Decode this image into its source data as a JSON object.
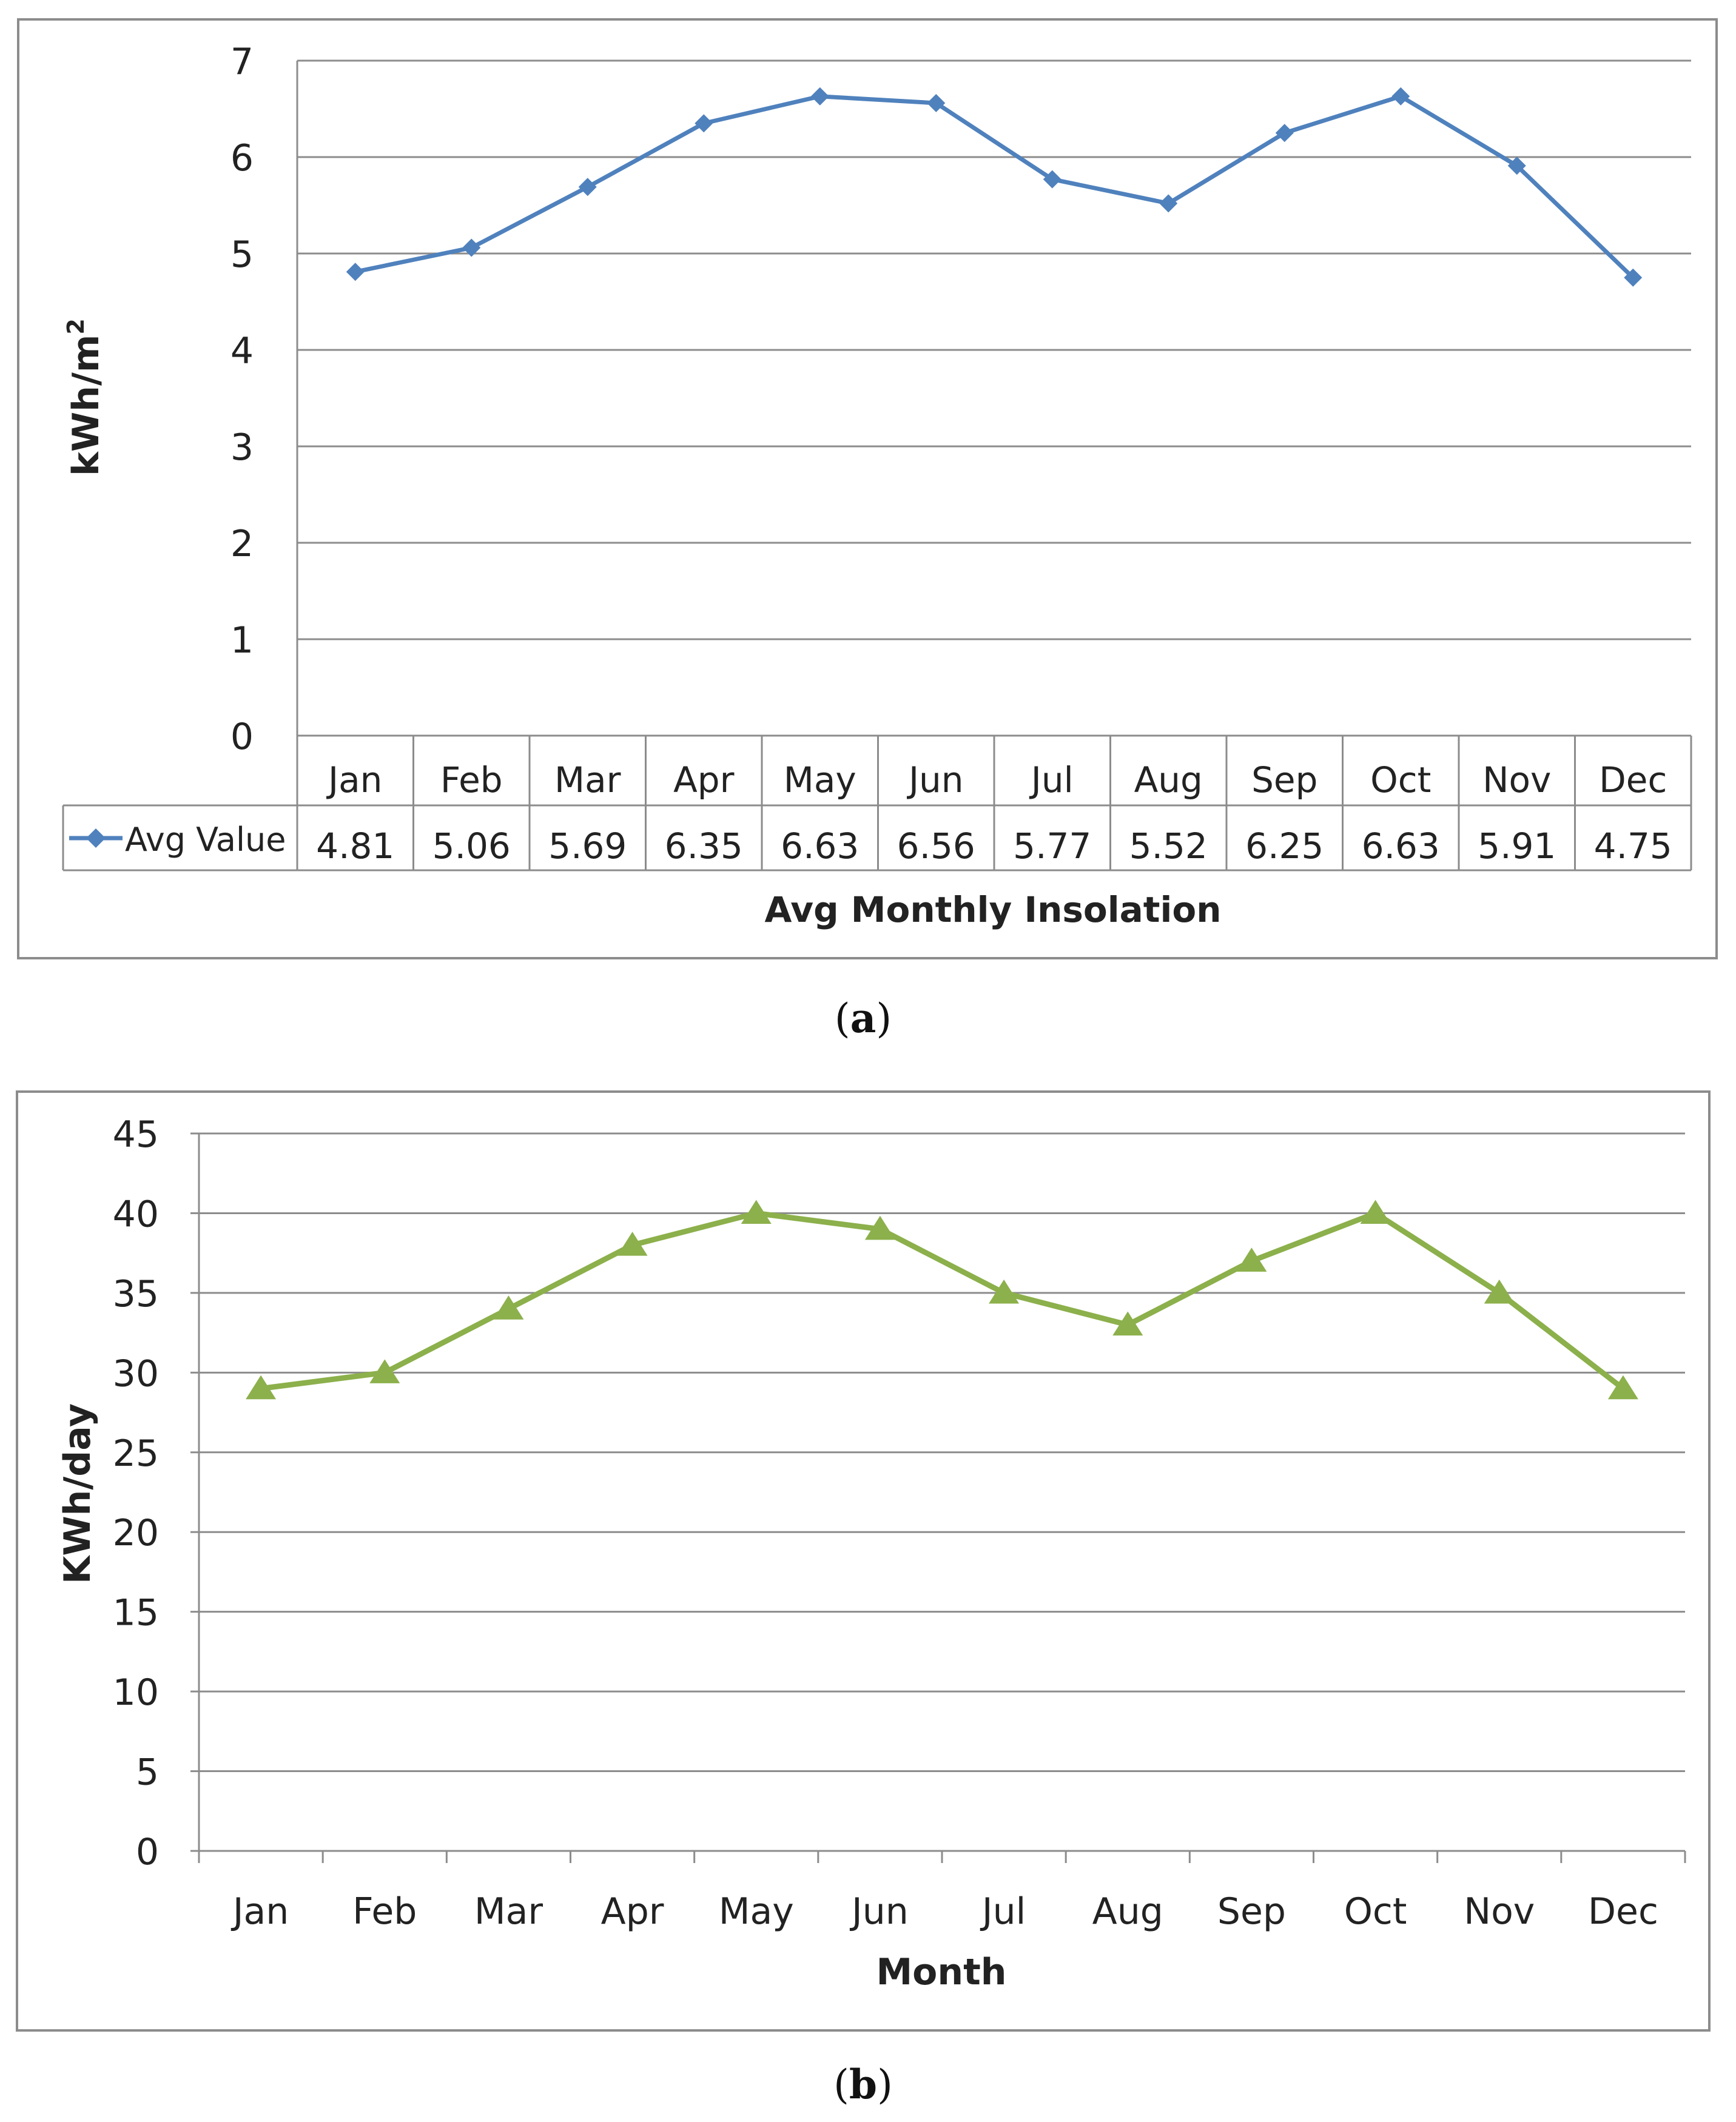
{
  "colors": {
    "series_a": "#4F81BD",
    "series_b": "#8CB04B",
    "grid": "#8c8c8c"
  },
  "chart_data": [
    {
      "id": "a",
      "type": "line",
      "caption": "a",
      "title": "Avg Monthly Insolation",
      "ylabel": "kWh/m",
      "ylabel_sup": "2",
      "ylim": [
        0,
        7
      ],
      "yticks": [
        "0",
        "1",
        "2",
        "3",
        "4",
        "5",
        "6",
        "7"
      ],
      "categories": [
        "Jan",
        "Feb",
        "Mar",
        "Apr",
        "May",
        "Jun",
        "Jul",
        "Aug",
        "Sep",
        "Oct",
        "Nov",
        "Dec"
      ],
      "series": [
        {
          "name": "Avg Value",
          "marker": "diamond",
          "values": [
            4.81,
            5.06,
            5.69,
            6.35,
            6.63,
            6.56,
            5.77,
            5.52,
            6.25,
            6.63,
            5.91,
            4.75
          ],
          "labels": [
            "4.81",
            "5.06",
            "5.69",
            "6.35",
            "6.63",
            "6.56",
            "5.77",
            "5.52",
            "6.25",
            "6.63",
            "5.91",
            "4.75"
          ]
        }
      ],
      "data_table": true
    },
    {
      "id": "b",
      "type": "line",
      "caption": "b",
      "xlabel": "Month",
      "ylabel": "KWh/day",
      "ylim": [
        0,
        45
      ],
      "yticks": [
        "0",
        "5",
        "10",
        "15",
        "20",
        "25",
        "30",
        "35",
        "40",
        "45"
      ],
      "categories": [
        "Jan",
        "Feb",
        "Mar",
        "Apr",
        "May",
        "Jun",
        "Jul",
        "Aug",
        "Sep",
        "Oct",
        "Nov",
        "Dec"
      ],
      "series": [
        {
          "name": "KWh/day",
          "marker": "triangle",
          "values": [
            29,
            30,
            34,
            38,
            40,
            39,
            35,
            33,
            37,
            40,
            35,
            29
          ]
        }
      ]
    }
  ]
}
